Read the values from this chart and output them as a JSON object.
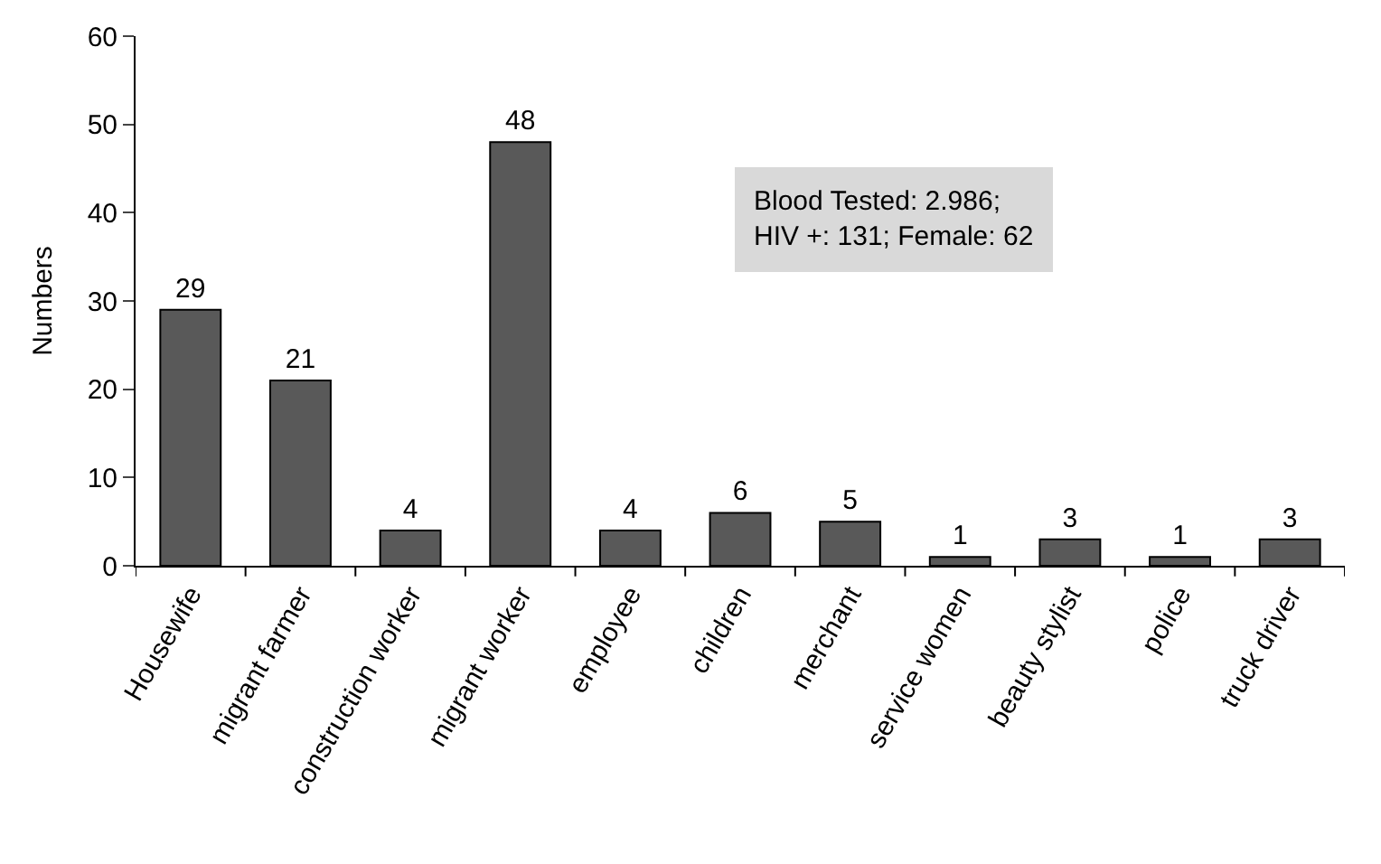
{
  "chart_data": {
    "type": "bar",
    "categories": [
      "Housewife",
      "migrant farmer",
      "construction worker",
      "migrant worker",
      "employee",
      "children",
      "merchant",
      "service women",
      "beauty stylist",
      "police",
      "truck driver"
    ],
    "values": [
      29,
      21,
      4,
      48,
      4,
      6,
      5,
      1,
      3,
      1,
      3
    ],
    "color": "#595959",
    "ylabel": "Numbers",
    "ylim": [
      0,
      60
    ],
    "yticks": [
      0,
      10,
      20,
      30,
      40,
      50,
      60
    ],
    "data_labels": true,
    "annotations": [
      "Blood Tested: 2.986;\nHIV +: 131; Female: 62"
    ]
  }
}
